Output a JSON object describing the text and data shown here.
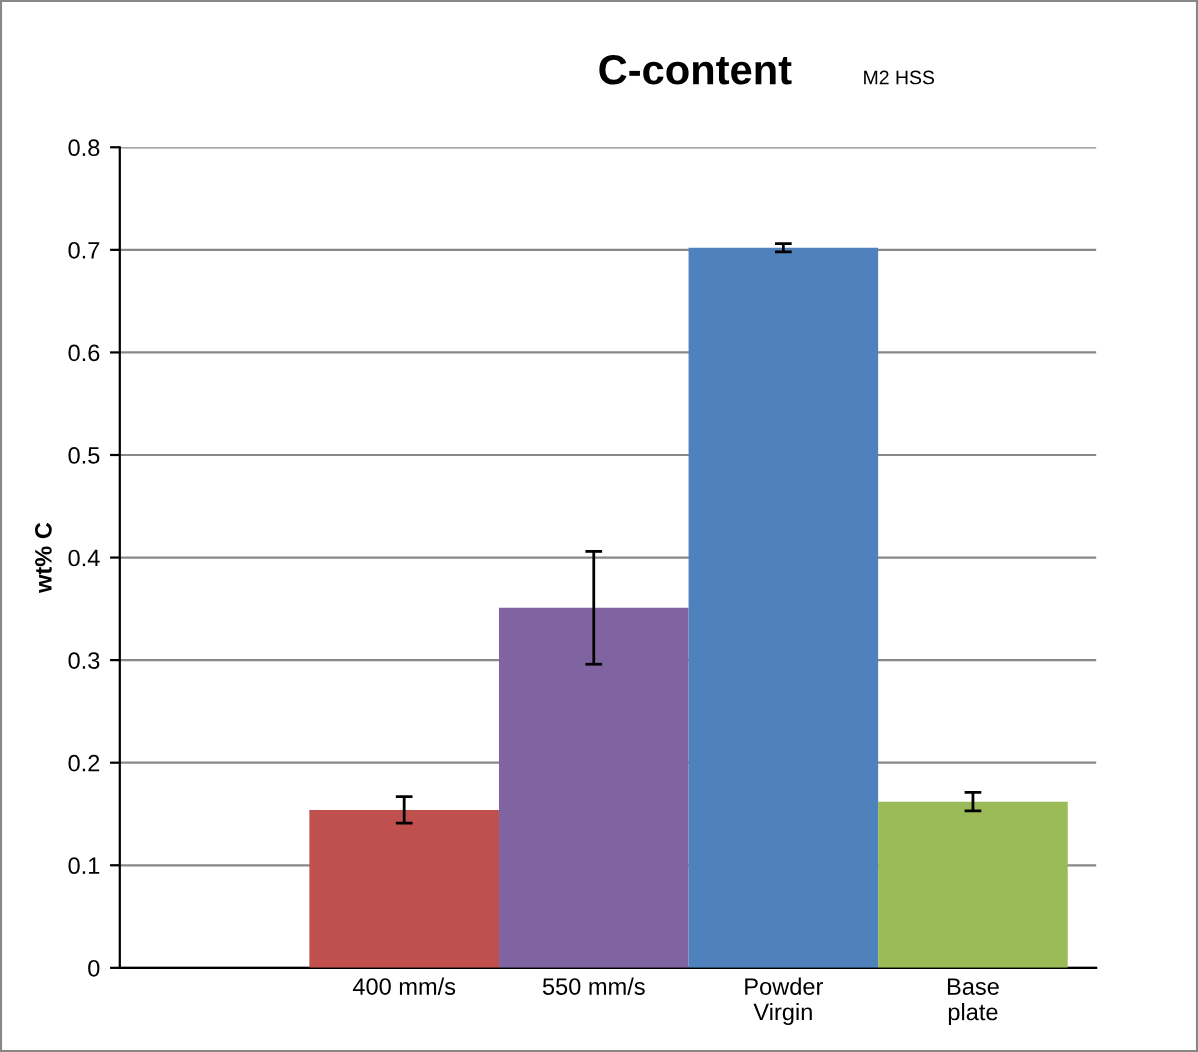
{
  "chart_data": {
    "type": "bar",
    "title": "C-content",
    "subtitle": "M2 HSS",
    "ylabel": "wt% C",
    "categories": [
      "400 mm/s",
      "550 mm/s",
      "Powder\nVirgin",
      "Base\nplate"
    ],
    "values": [
      0.154,
      0.351,
      0.702,
      0.162
    ],
    "errors": [
      0.013,
      0.055,
      0.004,
      0.009
    ],
    "colors": [
      "#c0504d",
      "#8064a2",
      "#4f81bd",
      "#9bbb59"
    ],
    "ylim": [
      0,
      0.8
    ],
    "yticks": [
      0,
      0.1,
      0.2,
      0.3,
      0.4,
      0.5,
      0.6,
      0.7,
      0.8
    ],
    "grid": "y",
    "legend": false
  }
}
